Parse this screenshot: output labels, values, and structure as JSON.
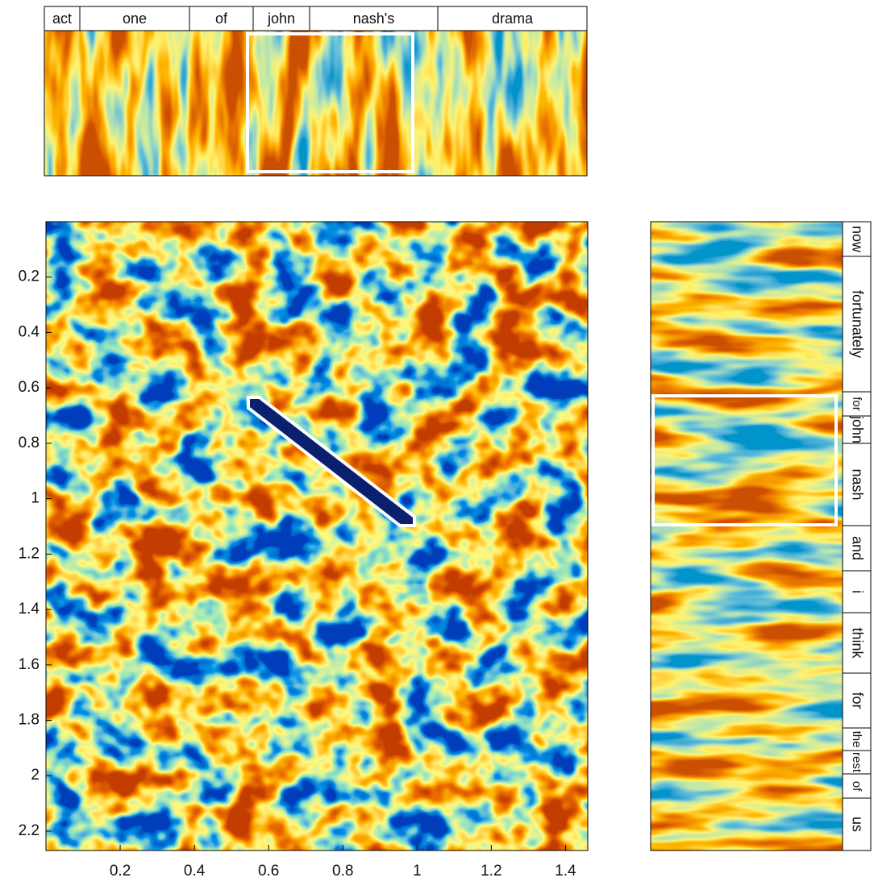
{
  "chart_data": {
    "type": "heatmap",
    "xlim": [
      0,
      1.46
    ],
    "ylim": [
      0,
      2.27
    ],
    "y_inverted": true,
    "xticks": [
      0.2,
      0.4,
      0.6,
      0.8,
      1,
      1.2,
      1.4
    ],
    "yticks": [
      0.2,
      0.4,
      0.6,
      0.8,
      1,
      1.2,
      1.4,
      1.6,
      1.8,
      2,
      2.2
    ]
  },
  "top_spectrogram": {
    "words": [
      "act",
      "one",
      "of",
      "john",
      "nash's",
      "drama"
    ]
  },
  "side_spectrogram": {
    "words": [
      "now",
      "fortunately",
      "for",
      "john",
      "nash",
      "and",
      "i",
      "think",
      "for",
      "the",
      "rest",
      "of",
      "us"
    ]
  }
}
